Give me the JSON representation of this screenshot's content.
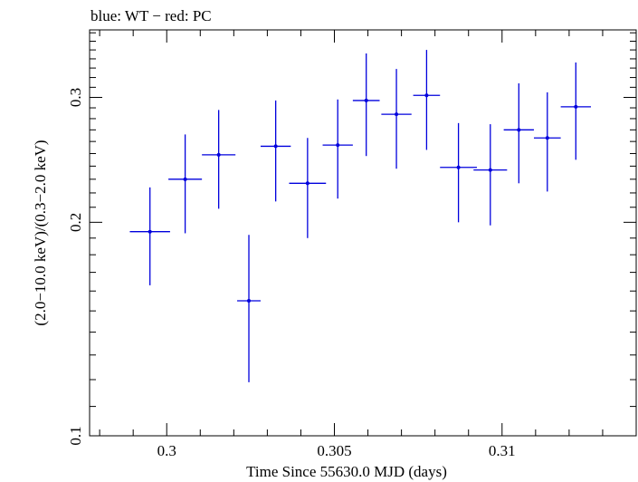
{
  "chart_data": {
    "type": "scatter",
    "title": "blue: WT − red: PC",
    "xlabel": "Time Since 55630.0 MJD (days)",
    "ylabel": "(2.0−10.0 keV)/(0.3−2.0 keV)",
    "xlim": [
      0.2977,
      0.314
    ],
    "ylim": [
      0.1,
      0.3735
    ],
    "y_scale": "log",
    "x_ticks": [
      {
        "value": 0.3,
        "label": "0.3"
      },
      {
        "value": 0.305,
        "label": "0.305"
      },
      {
        "value": 0.31,
        "label": "0.31"
      }
    ],
    "y_ticks": [
      {
        "value": 0.1,
        "label": "0.1"
      },
      {
        "value": 0.2,
        "label": "0.2"
      },
      {
        "value": 0.3,
        "label": "0.3"
      }
    ],
    "color": "#0000dd",
    "series": [
      {
        "points": [
          {
            "x": 0.2995,
            "xerr": 0.0006,
            "y": 0.194,
            "ylow": 0.163,
            "yhigh": 0.224
          },
          {
            "x": 0.30055,
            "xerr": 0.0005,
            "y": 0.23,
            "ylow": 0.193,
            "yhigh": 0.266
          },
          {
            "x": 0.30155,
            "xerr": 0.0005,
            "y": 0.249,
            "ylow": 0.209,
            "yhigh": 0.288
          },
          {
            "x": 0.30245,
            "xerr": 0.00035,
            "y": 0.155,
            "ylow": 0.119,
            "yhigh": 0.192
          },
          {
            "x": 0.30325,
            "xerr": 0.00045,
            "y": 0.256,
            "ylow": 0.214,
            "yhigh": 0.297
          },
          {
            "x": 0.3042,
            "xerr": 0.00055,
            "y": 0.227,
            "ylow": 0.19,
            "yhigh": 0.263
          },
          {
            "x": 0.3051,
            "xerr": 0.00045,
            "y": 0.257,
            "ylow": 0.216,
            "yhigh": 0.298
          },
          {
            "x": 0.30595,
            "xerr": 0.0004,
            "y": 0.297,
            "ylow": 0.248,
            "yhigh": 0.346
          },
          {
            "x": 0.30685,
            "xerr": 0.00045,
            "y": 0.284,
            "ylow": 0.238,
            "yhigh": 0.329
          },
          {
            "x": 0.30775,
            "xerr": 0.0004,
            "y": 0.302,
            "ylow": 0.253,
            "yhigh": 0.35
          },
          {
            "x": 0.3087,
            "xerr": 0.00055,
            "y": 0.239,
            "ylow": 0.2,
            "yhigh": 0.276
          },
          {
            "x": 0.30965,
            "xerr": 0.0005,
            "y": 0.237,
            "ylow": 0.198,
            "yhigh": 0.275
          },
          {
            "x": 0.3105,
            "xerr": 0.00045,
            "y": 0.27,
            "ylow": 0.227,
            "yhigh": 0.314
          },
          {
            "x": 0.31135,
            "xerr": 0.0004,
            "y": 0.263,
            "ylow": 0.221,
            "yhigh": 0.305
          },
          {
            "x": 0.3122,
            "xerr": 0.00045,
            "y": 0.291,
            "ylow": 0.245,
            "yhigh": 0.336
          }
        ]
      }
    ]
  }
}
